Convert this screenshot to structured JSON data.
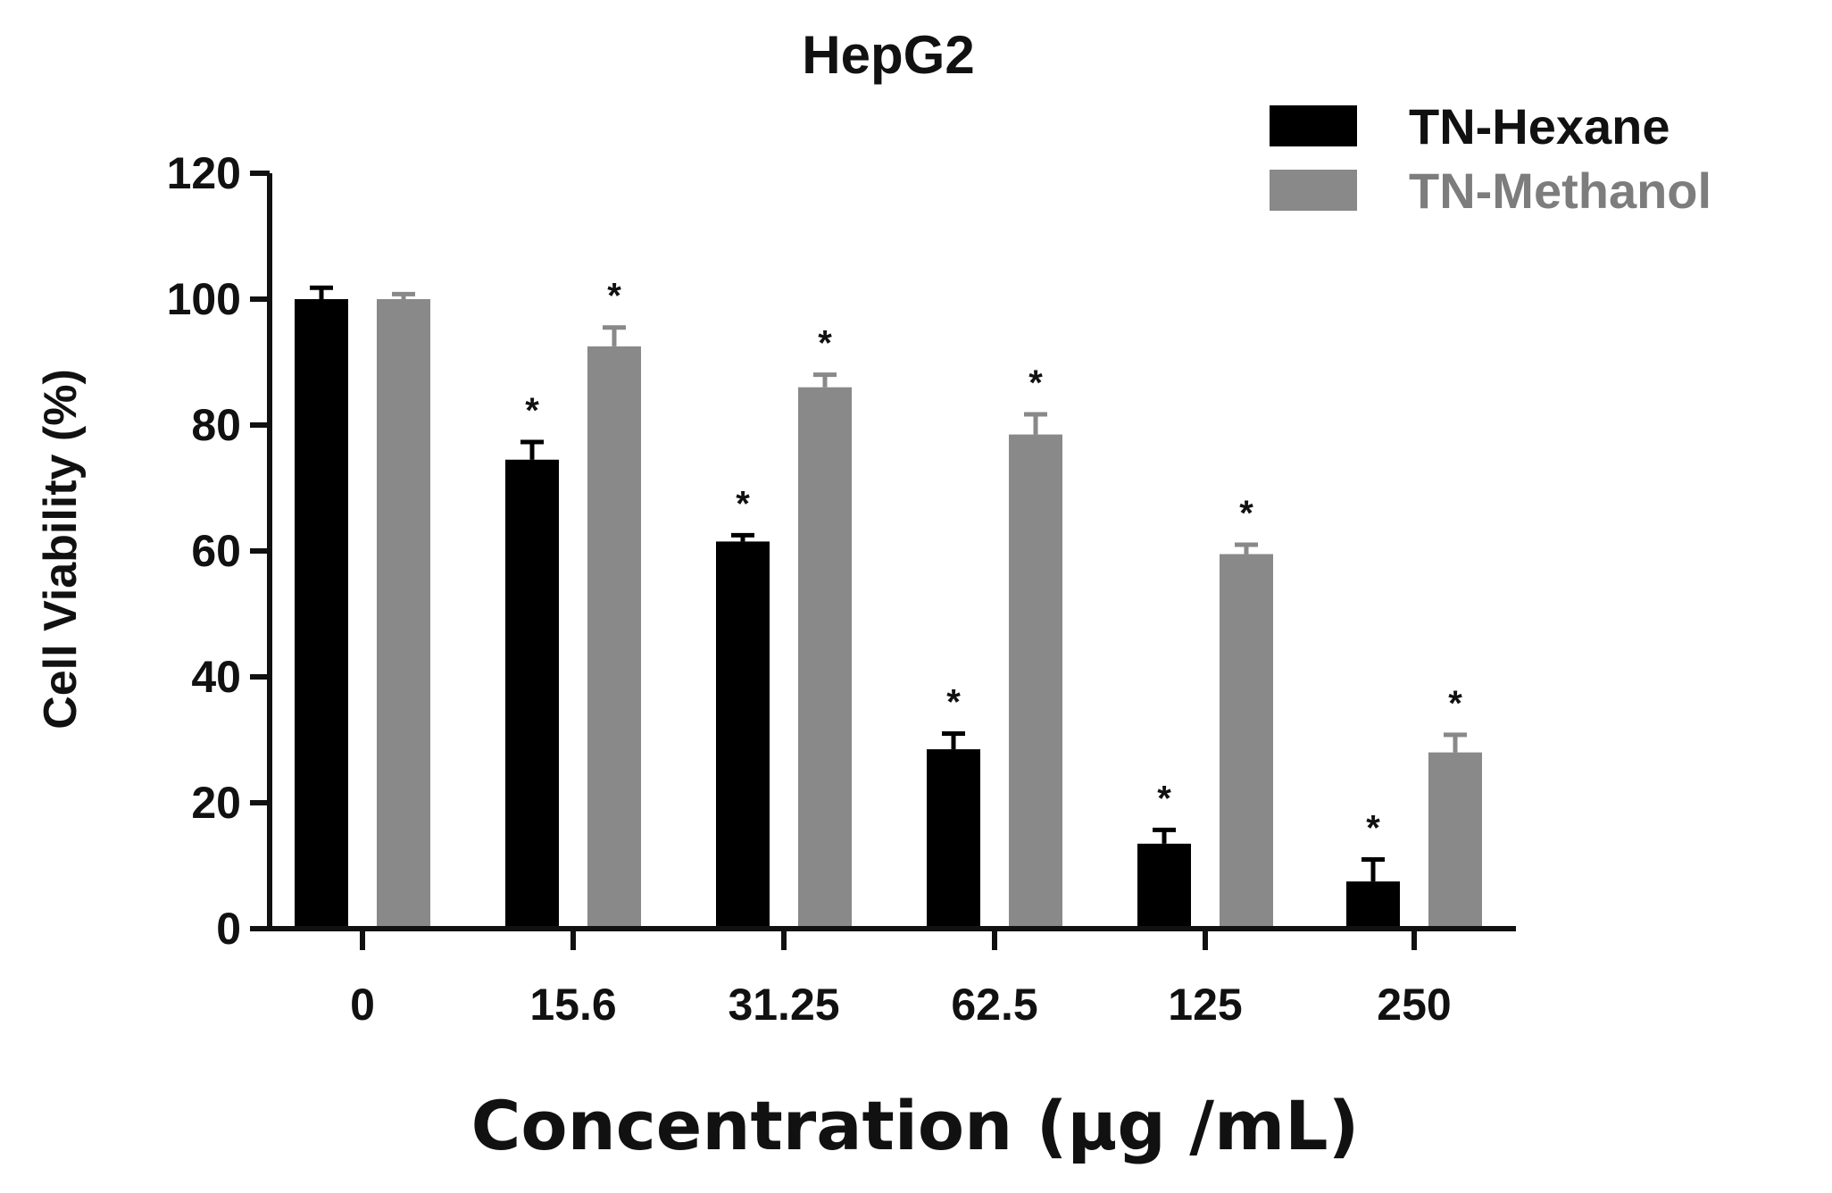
{
  "chart_data": {
    "type": "bar",
    "title": "HepG2",
    "xlabel": "Concentration (μg /mL)",
    "ylabel": "Cell Viability (%)",
    "ylim": [
      0,
      120
    ],
    "yticks": [
      "0",
      "20",
      "40",
      "60",
      "80",
      "100",
      "120"
    ],
    "categories": [
      "0",
      "15.6",
      "31.25",
      "62.5",
      "125",
      "250"
    ],
    "series": [
      {
        "name": "TN-Hexane",
        "color": "#000000",
        "values": [
          100,
          74.5,
          61.5,
          28.5,
          13.5,
          7.5
        ],
        "errors": [
          1.8,
          2.8,
          1.0,
          2.5,
          2.2,
          3.5
        ],
        "significance": [
          "",
          "*",
          "*",
          "*",
          "*",
          "*"
        ]
      },
      {
        "name": "TN-Methanol",
        "color": "#898989",
        "values": [
          100,
          92.5,
          86,
          78.5,
          59.5,
          28
        ],
        "errors": [
          0.8,
          3.0,
          2.0,
          3.2,
          1.5,
          2.8
        ],
        "significance": [
          "",
          "*",
          "*",
          "*",
          "*",
          "*"
        ]
      }
    ],
    "legend": "top-right",
    "grid": false
  }
}
